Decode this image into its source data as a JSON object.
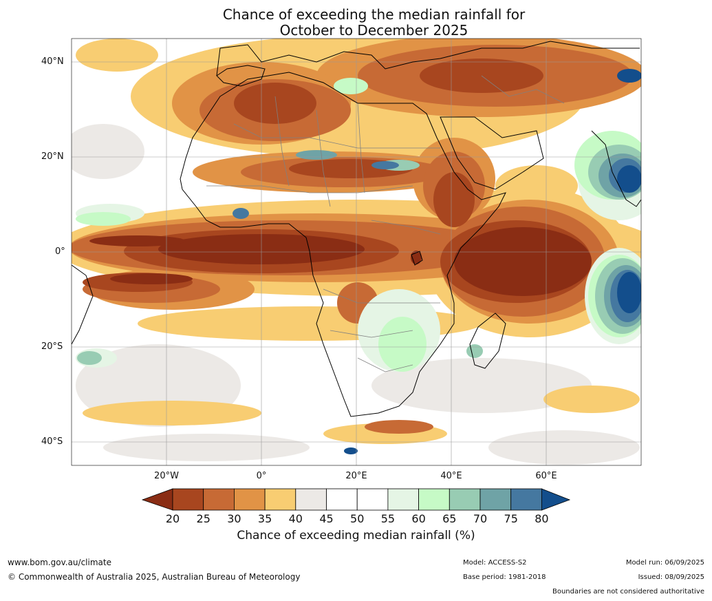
{
  "title": {
    "line1": "Chance of exceeding the median rainfall for",
    "line2": "October to December 2025"
  },
  "map": {
    "lat_labels": [
      "40°N",
      "20°N",
      "0°",
      "20°S",
      "40°S"
    ],
    "lon_labels": [
      "20°W",
      "0°",
      "20°E",
      "40°E",
      "60°E"
    ],
    "colors": {
      "c20": "#8a2d14",
      "c25": "#a8461f",
      "c30": "#c76a35",
      "c35": "#e19346",
      "c40": "#f8cd72",
      "c45": "#ece9e6",
      "c50": "#ffffff",
      "c55": "#ffffff",
      "c60": "#e5f5e5",
      "c65": "#c6fac6",
      "c70": "#98ccb3",
      "c75": "#6fa3a6",
      "c80": "#4578a0",
      "c85": "#134e8c",
      "land_line": "#000000",
      "border": "#808080"
    }
  },
  "colorbar": {
    "ticks": [
      "20",
      "25",
      "30",
      "35",
      "40",
      "45",
      "50",
      "55",
      "60",
      "65",
      "70",
      "75",
      "80"
    ],
    "label": "Chance of exceeding median rainfall (%)"
  },
  "footer": {
    "website": "www.bom.gov.au/climate",
    "copyright": "© Commonwealth of Australia 2025, Australian Bureau of Meteorology",
    "model": "Model: ACCESS-S2",
    "base_period": "Base period: 1981-2018",
    "model_run": "Model run: 06/09/2025",
    "issued": "Issued: 08/09/2025",
    "disclaimer": "Boundaries are not considered authoritative"
  }
}
